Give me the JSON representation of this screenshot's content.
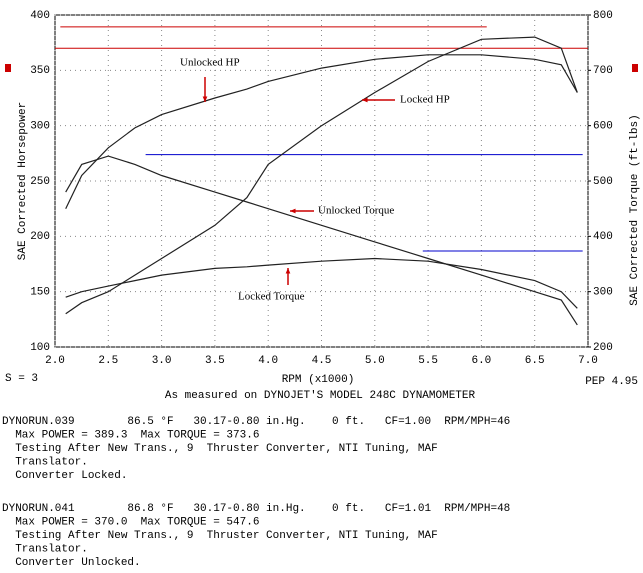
{
  "chart_data": {
    "type": "line",
    "x": [
      2.1,
      2.25,
      2.5,
      2.75,
      3.0,
      3.5,
      3.8,
      4.0,
      4.5,
      5.0,
      5.5,
      6.0,
      6.5,
      6.75,
      6.9
    ],
    "series": [
      {
        "name": "Unlocked HP",
        "color": "#222222",
        "axis": "y",
        "values": [
          225,
          255,
          280,
          298,
          310,
          325,
          333,
          340,
          352,
          360,
          364,
          364,
          360,
          355,
          330
        ]
      },
      {
        "name": "Locked HP",
        "color": "#222222",
        "axis": "y",
        "values": [
          130,
          140,
          150,
          165,
          180,
          210,
          235,
          265,
          300,
          330,
          358,
          378,
          380,
          370,
          330
        ]
      },
      {
        "name": "Unlocked Torque",
        "color": "#222222",
        "axis": "y2",
        "values": [
          480,
          530,
          545,
          530,
          510,
          480,
          462,
          450,
          420,
          390,
          360,
          330,
          300,
          285,
          240
        ]
      },
      {
        "name": "Locked Torque",
        "color": "#222222",
        "axis": "y2",
        "values": [
          290,
          300,
          310,
          320,
          330,
          342,
          345,
          348,
          355,
          360,
          355,
          340,
          320,
          300,
          270
        ]
      }
    ],
    "reference_lines": [
      {
        "value": 389.3,
        "axis": "y",
        "color": "#cc0000",
        "xrange": [
          2.05,
          6.05
        ]
      },
      {
        "value": 370.0,
        "axis": "y",
        "color": "#cc0000",
        "xrange": [
          2.0,
          7.0
        ]
      },
      {
        "value": 547.6,
        "axis": "y2",
        "color": "#0000cc",
        "xrange": [
          2.85,
          6.95
        ]
      },
      {
        "value": 373.6,
        "axis": "y2",
        "color": "#0000cc",
        "xrange": [
          5.45,
          6.95
        ]
      }
    ],
    "annotations": [
      "Unlocked HP",
      "Locked HP",
      "Unlocked Torque",
      "Locked Torque"
    ],
    "xlim": [
      2.0,
      7.0
    ],
    "xticks": [
      {
        "value": 2.0,
        "label": "2.0"
      },
      2.5,
      {
        "value": 3.0,
        "label": "3.0"
      },
      3.5,
      {
        "value": 4.0,
        "label": "4.0"
      },
      4.5,
      {
        "value": 5.0,
        "label": "5.0"
      },
      5.5,
      {
        "value": 6.0,
        "label": "6.0"
      },
      6.5,
      {
        "value": 7.0,
        "label": "7.0"
      }
    ],
    "ylim": [
      100,
      400
    ],
    "yticks": [
      100,
      150,
      200,
      250,
      300,
      350,
      400
    ],
    "y2lim": [
      200,
      800
    ],
    "y2ticks": [
      200,
      300,
      400,
      500,
      600,
      700,
      800
    ],
    "grid": true,
    "y_label": "SAE Corrected Horsepower",
    "y2_label": "SAE Corrected Torque (ft-lbs)",
    "x_label": "RPM (x1000)",
    "smoothing": "S = 3",
    "pep": "PEP 4.95",
    "caption": "As measured on DYNOJET'S MODEL 248C DYNAMOMETER",
    "runs": [
      {
        "lines": [
          "DYNORUN.039        86.5 °F   30.17-0.80 in.Hg.    0 ft.   CF=1.00  RPM/MPH=46",
          "  Max POWER = 389.3  Max TORQUE = 373.6",
          "  Testing After New Trans., 9  Thruster Converter, NTI Tuning, MAF",
          "  Translator.",
          "  Converter Locked."
        ]
      },
      {
        "lines": [
          "DYNORUN.041        86.8 °F   30.17-0.80 in.Hg.    0 ft.   CF=1.01  RPM/MPH=48",
          "  Max POWER = 370.0  Max TORQUE = 547.6",
          "  Testing After New Trans., 9  Thruster Converter, NTI Tuning, MAF",
          "  Translator.",
          "  Converter Unlocked."
        ]
      }
    ]
  }
}
